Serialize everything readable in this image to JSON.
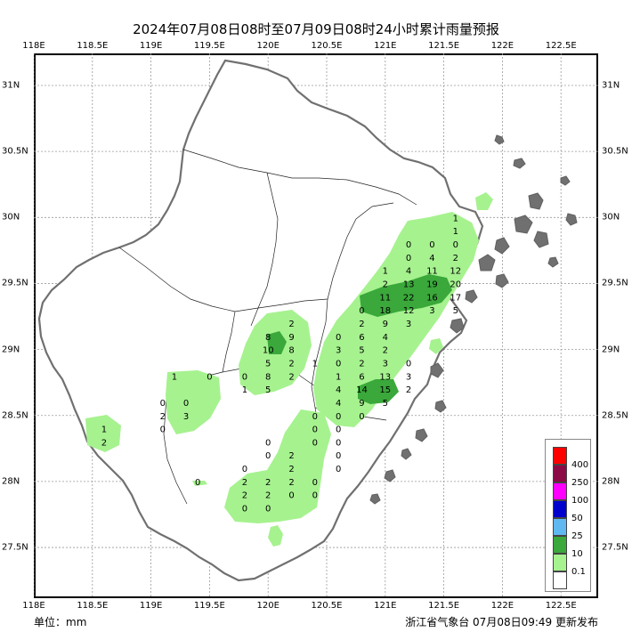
{
  "title": "2024年07月08日08时至07月09日08时24小时累计雨量预报",
  "axes": {
    "lon_ticks": [
      "118E",
      "118.5E",
      "119E",
      "119.5E",
      "120E",
      "120.5E",
      "121E",
      "121.5E",
      "122E",
      "122.5E"
    ],
    "lat_ticks": [
      "31N",
      "30.5N",
      "30N",
      "29.5N",
      "29N",
      "28.5N",
      "28N",
      "27.5N"
    ]
  },
  "legend": {
    "items": [
      {
        "label": "400",
        "color": "#ff0000"
      },
      {
        "label": "250",
        "color": "#8b0a46"
      },
      {
        "label": "100",
        "color": "#ff00ff"
      },
      {
        "label": "50",
        "color": "#0000cd"
      },
      {
        "label": "25",
        "color": "#5fb8f0"
      },
      {
        "label": "10",
        "color": "#3aa83a"
      },
      {
        "label": "0.1",
        "color": "#a6f28f"
      },
      {
        "label": "",
        "color": "#ffffff"
      }
    ]
  },
  "unit_label": "单位：mm",
  "publisher": "浙江省气象台 07月08日09:49 更新发布",
  "station_values": [
    {
      "v": "1",
      "lon": 121.6,
      "lat": 30.0
    },
    {
      "v": "1",
      "lon": 121.6,
      "lat": 29.9
    },
    {
      "v": "0",
      "lon": 121.2,
      "lat": 29.8
    },
    {
      "v": "0",
      "lon": 121.4,
      "lat": 29.8
    },
    {
      "v": "0",
      "lon": 121.6,
      "lat": 29.8
    },
    {
      "v": "0",
      "lon": 121.2,
      "lat": 29.7
    },
    {
      "v": "4",
      "lon": 121.4,
      "lat": 29.7
    },
    {
      "v": "2",
      "lon": 121.6,
      "lat": 29.7
    },
    {
      "v": "1",
      "lon": 121.0,
      "lat": 29.6
    },
    {
      "v": "4",
      "lon": 121.2,
      "lat": 29.6
    },
    {
      "v": "11",
      "lon": 121.4,
      "lat": 29.6
    },
    {
      "v": "12",
      "lon": 121.6,
      "lat": 29.6
    },
    {
      "v": "2",
      "lon": 121.0,
      "lat": 29.5
    },
    {
      "v": "13",
      "lon": 121.2,
      "lat": 29.5
    },
    {
      "v": "19",
      "lon": 121.4,
      "lat": 29.5
    },
    {
      "v": "20",
      "lon": 121.6,
      "lat": 29.5
    },
    {
      "v": "11",
      "lon": 121.0,
      "lat": 29.4
    },
    {
      "v": "22",
      "lon": 121.2,
      "lat": 29.4
    },
    {
      "v": "16",
      "lon": 121.4,
      "lat": 29.4
    },
    {
      "v": "17",
      "lon": 121.6,
      "lat": 29.4
    },
    {
      "v": "0",
      "lon": 120.8,
      "lat": 29.3
    },
    {
      "v": "18",
      "lon": 121.0,
      "lat": 29.3
    },
    {
      "v": "12",
      "lon": 121.2,
      "lat": 29.3
    },
    {
      "v": "3",
      "lon": 121.4,
      "lat": 29.3
    },
    {
      "v": "5",
      "lon": 121.6,
      "lat": 29.3
    },
    {
      "v": "2",
      "lon": 120.8,
      "lat": 29.2
    },
    {
      "v": "9",
      "lon": 121.0,
      "lat": 29.2
    },
    {
      "v": "3",
      "lon": 121.2,
      "lat": 29.2
    },
    {
      "v": "0",
      "lon": 120.6,
      "lat": 29.1
    },
    {
      "v": "6",
      "lon": 120.8,
      "lat": 29.1
    },
    {
      "v": "4",
      "lon": 121.0,
      "lat": 29.1
    },
    {
      "v": "3",
      "lon": 120.6,
      "lat": 29.0
    },
    {
      "v": "5",
      "lon": 120.8,
      "lat": 29.0
    },
    {
      "v": "2",
      "lon": 121.0,
      "lat": 29.0
    },
    {
      "v": "0",
      "lon": 120.6,
      "lat": 28.9
    },
    {
      "v": "2",
      "lon": 120.8,
      "lat": 28.9
    },
    {
      "v": "3",
      "lon": 121.0,
      "lat": 28.9
    },
    {
      "v": "0",
      "lon": 121.2,
      "lat": 28.9
    },
    {
      "v": "1",
      "lon": 120.6,
      "lat": 28.8
    },
    {
      "v": "6",
      "lon": 120.8,
      "lat": 28.8
    },
    {
      "v": "13",
      "lon": 121.0,
      "lat": 28.8
    },
    {
      "v": "3",
      "lon": 121.2,
      "lat": 28.8
    },
    {
      "v": "4",
      "lon": 120.6,
      "lat": 28.7
    },
    {
      "v": "14",
      "lon": 120.8,
      "lat": 28.7
    },
    {
      "v": "15",
      "lon": 121.0,
      "lat": 28.7
    },
    {
      "v": "2",
      "lon": 121.2,
      "lat": 28.7
    },
    {
      "v": "4",
      "lon": 120.6,
      "lat": 28.6
    },
    {
      "v": "9",
      "lon": 120.8,
      "lat": 28.6
    },
    {
      "v": "5",
      "lon": 121.0,
      "lat": 28.6
    },
    {
      "v": "0",
      "lon": 120.4,
      "lat": 28.5
    },
    {
      "v": "0",
      "lon": 120.6,
      "lat": 28.5
    },
    {
      "v": "0",
      "lon": 120.8,
      "lat": 28.5
    },
    {
      "v": "2",
      "lon": 120.2,
      "lat": 29.2
    },
    {
      "v": "8",
      "lon": 120.0,
      "lat": 29.1
    },
    {
      "v": "9",
      "lon": 120.2,
      "lat": 29.1
    },
    {
      "v": "10",
      "lon": 120.0,
      "lat": 29.0
    },
    {
      "v": "8",
      "lon": 120.2,
      "lat": 29.0
    },
    {
      "v": "5",
      "lon": 120.0,
      "lat": 28.9
    },
    {
      "v": "2",
      "lon": 120.2,
      "lat": 28.9
    },
    {
      "v": "1",
      "lon": 120.4,
      "lat": 28.9
    },
    {
      "v": "0",
      "lon": 119.8,
      "lat": 28.8
    },
    {
      "v": "8",
      "lon": 120.0,
      "lat": 28.8
    },
    {
      "v": "2",
      "lon": 120.2,
      "lat": 28.8
    },
    {
      "v": "1",
      "lon": 119.8,
      "lat": 28.7
    },
    {
      "v": "5",
      "lon": 120.0,
      "lat": 28.7
    },
    {
      "v": "1",
      "lon": 119.2,
      "lat": 28.8
    },
    {
      "v": "0",
      "lon": 119.5,
      "lat": 28.8
    },
    {
      "v": "0",
      "lon": 119.1,
      "lat": 28.6
    },
    {
      "v": "0",
      "lon": 119.3,
      "lat": 28.6
    },
    {
      "v": "2",
      "lon": 119.1,
      "lat": 28.5
    },
    {
      "v": "3",
      "lon": 119.3,
      "lat": 28.5
    },
    {
      "v": "0",
      "lon": 119.1,
      "lat": 28.4
    },
    {
      "v": "1",
      "lon": 118.6,
      "lat": 28.4
    },
    {
      "v": "2",
      "lon": 118.6,
      "lat": 28.3
    },
    {
      "v": "0",
      "lon": 120.4,
      "lat": 28.4
    },
    {
      "v": "0",
      "lon": 120.6,
      "lat": 28.4
    },
    {
      "v": "0",
      "lon": 120.0,
      "lat": 28.3
    },
    {
      "v": "0",
      "lon": 120.4,
      "lat": 28.3
    },
    {
      "v": "0",
      "lon": 120.6,
      "lat": 28.3
    },
    {
      "v": "0",
      "lon": 120.0,
      "lat": 28.2
    },
    {
      "v": "2",
      "lon": 120.2,
      "lat": 28.2
    },
    {
      "v": "0",
      "lon": 120.6,
      "lat": 28.2
    },
    {
      "v": "0",
      "lon": 119.8,
      "lat": 28.1
    },
    {
      "v": "2",
      "lon": 120.2,
      "lat": 28.1
    },
    {
      "v": "0",
      "lon": 120.6,
      "lat": 28.1
    },
    {
      "v": "0",
      "lon": 119.4,
      "lat": 28.0
    },
    {
      "v": "2",
      "lon": 119.8,
      "lat": 28.0
    },
    {
      "v": "2",
      "lon": 120.0,
      "lat": 28.0
    },
    {
      "v": "2",
      "lon": 120.2,
      "lat": 28.0
    },
    {
      "v": "0",
      "lon": 120.4,
      "lat": 28.0
    },
    {
      "v": "2",
      "lon": 119.8,
      "lat": 27.9
    },
    {
      "v": "2",
      "lon": 120.0,
      "lat": 27.9
    },
    {
      "v": "0",
      "lon": 120.2,
      "lat": 27.9
    },
    {
      "v": "0",
      "lon": 120.4,
      "lat": 27.9
    },
    {
      "v": "0",
      "lon": 119.8,
      "lat": 27.8
    },
    {
      "v": "0",
      "lon": 120.0,
      "lat": 27.8
    }
  ]
}
